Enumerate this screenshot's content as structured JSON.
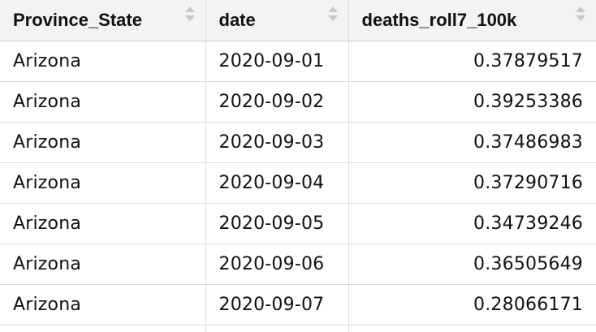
{
  "table": {
    "columns": [
      {
        "label": "Province_State"
      },
      {
        "label": "date"
      },
      {
        "label": "deaths_roll7_100k"
      }
    ],
    "sort_icon": "sort-arrows-icon",
    "rows": [
      {
        "province_state": "Arizona",
        "date": "2020-09-01",
        "deaths_roll7_100k": "0.37879517"
      },
      {
        "province_state": "Arizona",
        "date": "2020-09-02",
        "deaths_roll7_100k": "0.39253386"
      },
      {
        "province_state": "Arizona",
        "date": "2020-09-03",
        "deaths_roll7_100k": "0.37486983"
      },
      {
        "province_state": "Arizona",
        "date": "2020-09-04",
        "deaths_roll7_100k": "0.37290716"
      },
      {
        "province_state": "Arizona",
        "date": "2020-09-05",
        "deaths_roll7_100k": "0.34739246"
      },
      {
        "province_state": "Arizona",
        "date": "2020-09-06",
        "deaths_roll7_100k": "0.36505649"
      },
      {
        "province_state": "Arizona",
        "date": "2020-09-07",
        "deaths_roll7_100k": "0.28066171"
      }
    ]
  },
  "colors": {
    "header_bg": "#f3f3f3",
    "grid_line": "#dcdcdc",
    "text": "#111111",
    "sort_icon": "#c8c8c8"
  }
}
